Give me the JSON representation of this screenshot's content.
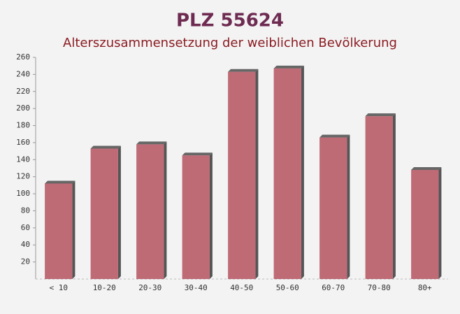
{
  "chart_data": {
    "type": "bar",
    "title": "PLZ 55624",
    "subtitle": "Alterszusammensetzung der weiblichen Bevölkerung",
    "categories": [
      "< 10",
      "10-20",
      "20-30",
      "30-40",
      "40-50",
      "50-60",
      "60-70",
      "70-80",
      "80+"
    ],
    "values": [
      112,
      153,
      158,
      145,
      243,
      247,
      166,
      191,
      128
    ],
    "color": "#b4525f",
    "ylim": [
      0,
      260
    ],
    "yticks": [
      20,
      40,
      60,
      80,
      100,
      120,
      140,
      160,
      180,
      200,
      220,
      240,
      260
    ]
  }
}
